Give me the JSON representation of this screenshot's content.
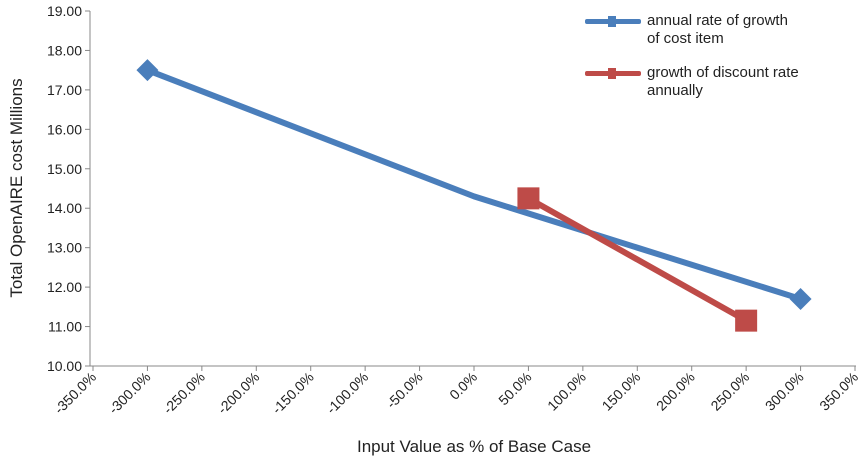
{
  "chart_data": {
    "type": "line",
    "xlabel": "Input Value as % of Base Case",
    "ylabel": "Total OpenAIRE cost Millions",
    "series": [
      {
        "name": "annual rate of growth of cost item",
        "color": "#4a7ebb",
        "marker": "diamond",
        "x": [
          -300,
          0,
          300
        ],
        "values": [
          17.5,
          14.3,
          11.7
        ]
      },
      {
        "name": "growth of discount rate annually",
        "color": "#be4b48",
        "marker": "square",
        "x": [
          50,
          250
        ],
        "values": [
          14.25,
          11.15
        ]
      }
    ],
    "xlim": [
      -350,
      350
    ],
    "xticks": [
      {
        "value": -350,
        "label": "-350.0%"
      },
      {
        "value": -300,
        "label": "-300.0%"
      },
      {
        "value": -250,
        "label": "-250.0%"
      },
      {
        "value": -200,
        "label": "-200.0%"
      },
      {
        "value": -150,
        "label": "-150.0%"
      },
      {
        "value": -100,
        "label": "-100.0%"
      },
      {
        "value": -50,
        "label": "-50.0%"
      },
      {
        "value": 0,
        "label": "0.0%"
      },
      {
        "value": 50,
        "label": "50.0%"
      },
      {
        "value": 100,
        "label": "100.0%"
      },
      {
        "value": 150,
        "label": "150.0%"
      },
      {
        "value": 200,
        "label": "200.0%"
      },
      {
        "value": 250,
        "label": "250.0%"
      },
      {
        "value": 300,
        "label": "300.0%"
      },
      {
        "value": 350,
        "label": "350.0%"
      }
    ],
    "ylim": [
      10,
      19
    ],
    "yticks": [
      {
        "value": 10,
        "label": "10.00"
      },
      {
        "value": 11,
        "label": "11.00"
      },
      {
        "value": 12,
        "label": "12.00"
      },
      {
        "value": 13,
        "label": "13.00"
      },
      {
        "value": 14,
        "label": "14.00"
      },
      {
        "value": 15,
        "label": "15.00"
      },
      {
        "value": 16,
        "label": "16.00"
      },
      {
        "value": 17,
        "label": "17.00"
      },
      {
        "value": 18,
        "label": "18.00"
      },
      {
        "value": 19,
        "label": "19.00"
      }
    ],
    "grid": false,
    "legend": "upper right"
  }
}
